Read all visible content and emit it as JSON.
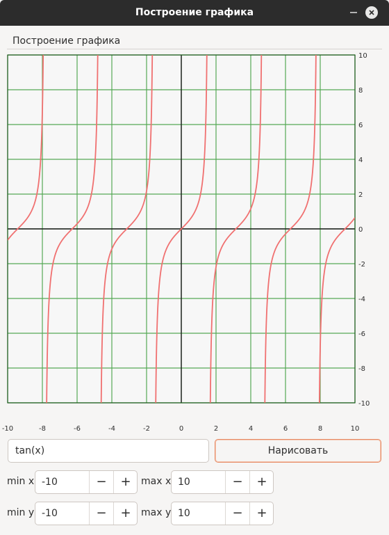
{
  "window": {
    "title": "Построение графика"
  },
  "tab": {
    "label": "Построение графика"
  },
  "function_input": {
    "value": "tan(x)"
  },
  "draw_button": {
    "label": "Нарисовать"
  },
  "ranges": {
    "min_x": {
      "label": "min x",
      "value": "-10",
      "minus": "−",
      "plus": "+"
    },
    "max_x": {
      "label": "max x",
      "value": "10",
      "minus": "−",
      "plus": "+"
    },
    "min_y": {
      "label": "min y",
      "value": "-10",
      "minus": "−",
      "plus": "+"
    },
    "max_y": {
      "label": "max y",
      "value": "10",
      "minus": "−",
      "plus": "+"
    }
  },
  "colors": {
    "grid": "#55a855",
    "axes": "#1a1a1a",
    "curve": "#f07070",
    "plot_background": "#f7f7f7",
    "accent_border": "#e68a64"
  },
  "chart_data": {
    "type": "line",
    "function": "tan(x)",
    "xlim": [
      -10,
      10
    ],
    "ylim": [
      -10,
      10
    ],
    "x_ticks": [
      "-10",
      "-8",
      "-6",
      "-4",
      "-2",
      "0",
      "2",
      "4",
      "6",
      "8",
      "10"
    ],
    "y_ticks": [
      "10",
      "8",
      "6",
      "4",
      "2",
      "0",
      "-2",
      "-4",
      "-6",
      "-8",
      "-10"
    ],
    "grid": true
  }
}
